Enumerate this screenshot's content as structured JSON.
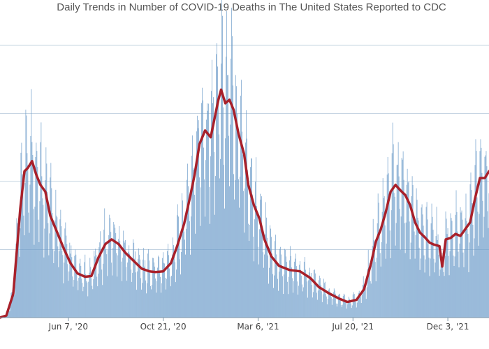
{
  "chart_data": {
    "type": "bar",
    "title": "Daily Trends in Number of COVID-19 Deaths in The United States Reported to CDC",
    "xlabel": "",
    "ylabel": "",
    "x_start": "2020-03-01",
    "x_range": [
      "2020-03-01",
      "2022-01-31"
    ],
    "ylim": [
      0,
      4000
    ],
    "y_gridlines": [
      1000,
      2000,
      3000,
      4000
    ],
    "grid": true,
    "xticks": [
      {
        "date": "2020-06-07",
        "label": "Jun 7, '20"
      },
      {
        "date": "2020-10-21",
        "label": "Oct 21, '20"
      },
      {
        "date": "2021-03-06",
        "label": "Mar 6, '21"
      },
      {
        "date": "2021-07-20",
        "label": "Jul 20, '21"
      },
      {
        "date": "2021-12-03",
        "label": "Dec 3, '21"
      }
    ],
    "moving_average": [
      [
        "2020-03-01",
        0
      ],
      [
        "2020-03-10",
        30
      ],
      [
        "2020-03-20",
        350
      ],
      [
        "2020-03-30",
        1600
      ],
      [
        "2020-04-05",
        2150
      ],
      [
        "2020-04-10",
        2200
      ],
      [
        "2020-04-16",
        2300
      ],
      [
        "2020-04-22",
        2100
      ],
      [
        "2020-04-28",
        1950
      ],
      [
        "2020-05-05",
        1850
      ],
      [
        "2020-05-12",
        1500
      ],
      [
        "2020-05-20",
        1300
      ],
      [
        "2020-06-01",
        1000
      ],
      [
        "2020-06-10",
        800
      ],
      [
        "2020-06-20",
        650
      ],
      [
        "2020-07-01",
        600
      ],
      [
        "2020-07-10",
        610
      ],
      [
        "2020-07-20",
        880
      ],
      [
        "2020-07-30",
        1080
      ],
      [
        "2020-08-08",
        1150
      ],
      [
        "2020-08-18",
        1080
      ],
      [
        "2020-08-28",
        950
      ],
      [
        "2020-09-10",
        820
      ],
      [
        "2020-09-20",
        720
      ],
      [
        "2020-10-01",
        680
      ],
      [
        "2020-10-10",
        670
      ],
      [
        "2020-10-21",
        680
      ],
      [
        "2020-11-01",
        800
      ],
      [
        "2020-11-10",
        1050
      ],
      [
        "2020-11-20",
        1380
      ],
      [
        "2020-11-28",
        1750
      ],
      [
        "2020-12-05",
        2100
      ],
      [
        "2020-12-12",
        2550
      ],
      [
        "2020-12-20",
        2750
      ],
      [
        "2020-12-28",
        2650
      ],
      [
        "2021-01-03",
        2950
      ],
      [
        "2021-01-08",
        3200
      ],
      [
        "2021-01-12",
        3350
      ],
      [
        "2021-01-18",
        3150
      ],
      [
        "2021-01-24",
        3200
      ],
      [
        "2021-01-30",
        3050
      ],
      [
        "2021-02-06",
        2700
      ],
      [
        "2021-02-14",
        2400
      ],
      [
        "2021-02-20",
        1950
      ],
      [
        "2021-02-28",
        1650
      ],
      [
        "2021-03-08",
        1450
      ],
      [
        "2021-03-15",
        1150
      ],
      [
        "2021-03-25",
        900
      ],
      [
        "2021-04-05",
        760
      ],
      [
        "2021-04-20",
        700
      ],
      [
        "2021-05-05",
        680
      ],
      [
        "2021-05-20",
        580
      ],
      [
        "2021-06-01",
        450
      ],
      [
        "2021-06-15",
        360
      ],
      [
        "2021-06-30",
        280
      ],
      [
        "2021-07-12",
        230
      ],
      [
        "2021-07-25",
        260
      ],
      [
        "2021-08-05",
        420
      ],
      [
        "2021-08-15",
        800
      ],
      [
        "2021-08-22",
        1120
      ],
      [
        "2021-08-29",
        1300
      ],
      [
        "2021-09-05",
        1550
      ],
      [
        "2021-09-12",
        1850
      ],
      [
        "2021-09-19",
        1950
      ],
      [
        "2021-09-26",
        1870
      ],
      [
        "2021-10-03",
        1800
      ],
      [
        "2021-10-10",
        1650
      ],
      [
        "2021-10-17",
        1400
      ],
      [
        "2021-10-24",
        1250
      ],
      [
        "2021-10-31",
        1180
      ],
      [
        "2021-11-07",
        1100
      ],
      [
        "2021-11-14",
        1070
      ],
      [
        "2021-11-21",
        1050
      ],
      [
        "2021-11-25",
        750
      ],
      [
        "2021-11-30",
        1150
      ],
      [
        "2021-12-07",
        1170
      ],
      [
        "2021-12-14",
        1230
      ],
      [
        "2021-12-21",
        1200
      ],
      [
        "2021-12-28",
        1300
      ],
      [
        "2022-01-04",
        1400
      ],
      [
        "2022-01-11",
        1750
      ],
      [
        "2022-01-18",
        2050
      ],
      [
        "2022-01-25",
        2050
      ],
      [
        "2022-01-31",
        2150
      ]
    ],
    "colors": {
      "bar": "#6b9bc9",
      "line": "#a8202a",
      "grid": "#c5d4e2",
      "axis": "#7f96a8"
    }
  }
}
